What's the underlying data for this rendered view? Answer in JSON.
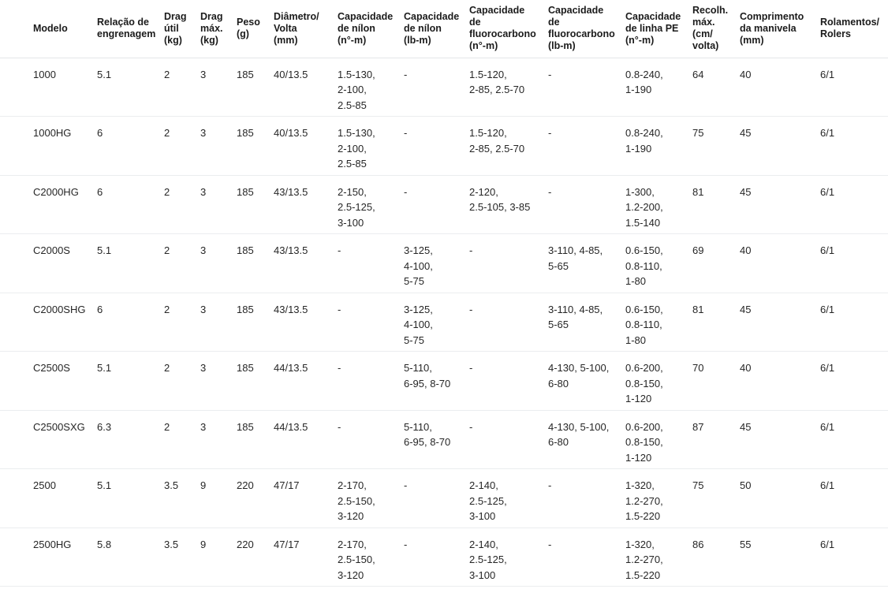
{
  "table": {
    "columns": [
      "Modelo",
      "Relação de\nengrenagem",
      "Drag\nútil\n(kg)",
      "Drag\nmáx.\n(kg)",
      "Peso\n(g)",
      "Diâmetro/\nVolta\n(mm)",
      "Capacidade\nde nílon\n(n°-m)",
      "Capacidade\nde nílon\n(lb-m)",
      "Capacidade\nde\nfluorocarbono\n(n°-m)",
      "Capacidade\nde\nfluorocarbono\n(lb-m)",
      "Capacidade\nde linha PE\n(n°-m)",
      "Recolh.\nmáx.\n(cm/\nvolta)",
      "Comprimento\nda manivela\n(mm)",
      "Rolamentos/\nRolers"
    ],
    "rows": [
      [
        "1000",
        "5.1",
        "2",
        "3",
        "185",
        "40/13.5",
        "1.5-130,\n2-100,\n2.5-85",
        "-",
        "1.5-120,\n2-85, 2.5-70",
        "-",
        "0.8-240,\n1-190",
        "64",
        "40",
        "6/1"
      ],
      [
        "1000HG",
        "6",
        "2",
        "3",
        "185",
        "40/13.5",
        "1.5-130,\n2-100,\n2.5-85",
        "-",
        "1.5-120,\n2-85, 2.5-70",
        "-",
        "0.8-240,\n1-190",
        "75",
        "45",
        "6/1"
      ],
      [
        "C2000HG",
        "6",
        "2",
        "3",
        "185",
        "43/13.5",
        "2-150,\n2.5-125,\n3-100",
        "-",
        "2-120,\n2.5-105, 3-85",
        "-",
        "1-300,\n1.2-200,\n1.5-140",
        "81",
        "45",
        "6/1"
      ],
      [
        "C2000S",
        "5.1",
        "2",
        "3",
        "185",
        "43/13.5",
        "-",
        "3-125,\n4-100,\n5-75",
        "-",
        "3-110, 4-85,\n5-65",
        "0.6-150,\n0.8-110,\n1-80",
        "69",
        "40",
        "6/1"
      ],
      [
        "C2000SHG",
        "6",
        "2",
        "3",
        "185",
        "43/13.5",
        "-",
        "3-125,\n4-100,\n5-75",
        "-",
        "3-110, 4-85,\n5-65",
        "0.6-150,\n0.8-110,\n1-80",
        "81",
        "45",
        "6/1"
      ],
      [
        "C2500S",
        "5.1",
        "2",
        "3",
        "185",
        "44/13.5",
        "-",
        "5-110,\n6-95, 8-70",
        "-",
        "4-130, 5-100,\n6-80",
        "0.6-200,\n0.8-150,\n1-120",
        "70",
        "40",
        "6/1"
      ],
      [
        "C2500SXG",
        "6.3",
        "2",
        "3",
        "185",
        "44/13.5",
        "-",
        "5-110,\n6-95, 8-70",
        "-",
        "4-130, 5-100,\n6-80",
        "0.6-200,\n0.8-150,\n1-120",
        "87",
        "45",
        "6/1"
      ],
      [
        "2500",
        "5.1",
        "3.5",
        "9",
        "220",
        "47/17",
        "2-170,\n2.5-150,\n3-120",
        "-",
        "2-140,\n2.5-125,\n3-100",
        "-",
        "1-320,\n1.2-270,\n1.5-220",
        "75",
        "50",
        "6/1"
      ],
      [
        "2500HG",
        "5.8",
        "3.5",
        "9",
        "220",
        "47/17",
        "2-170,\n2.5-150,\n3-120",
        "-",
        "2-140,\n2.5-125,\n3-100",
        "-",
        "1-320,\n1.2-270,\n1.5-220",
        "86",
        "55",
        "6/1"
      ]
    ]
  }
}
